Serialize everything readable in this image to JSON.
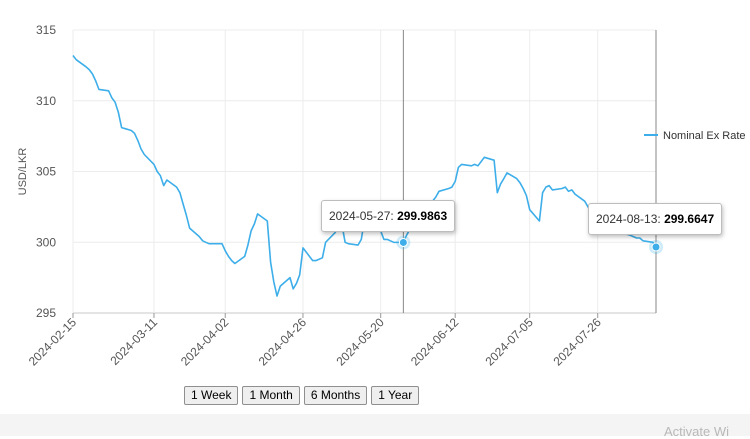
{
  "chart_data": {
    "type": "line",
    "title": "",
    "xlabel": "",
    "ylabel": "USD/LKR",
    "ylim": [
      295,
      315
    ],
    "y_ticks": [
      295,
      300,
      305,
      310,
      315
    ],
    "x_tick_labels": [
      "2024-02-15",
      "2024-03-11",
      "2024-04-02",
      "2024-04-26",
      "2024-05-20",
      "2024-06-12",
      "2024-07-05",
      "2024-07-26"
    ],
    "grid": true,
    "legend_position": "right",
    "series": [
      {
        "name": "Nominal Ex Rate",
        "color": "#3daee9",
        "points": [
          [
            "2024-02-15",
            313.2
          ],
          [
            "2024-02-16",
            312.9
          ],
          [
            "2024-02-19",
            312.4
          ],
          [
            "2024-02-20",
            312.2
          ],
          [
            "2024-02-21",
            311.9
          ],
          [
            "2024-02-22",
            311.4
          ],
          [
            "2024-02-23",
            310.8
          ],
          [
            "2024-02-26",
            310.7
          ],
          [
            "2024-02-27",
            310.2
          ],
          [
            "2024-02-28",
            309.9
          ],
          [
            "2024-02-29",
            309.2
          ],
          [
            "2024-03-01",
            308.1
          ],
          [
            "2024-03-04",
            307.9
          ],
          [
            "2024-03-05",
            307.7
          ],
          [
            "2024-03-06",
            307.2
          ],
          [
            "2024-03-07",
            306.6
          ],
          [
            "2024-03-08",
            306.2
          ],
          [
            "2024-03-11",
            305.5
          ],
          [
            "2024-03-12",
            305.0
          ],
          [
            "2024-03-13",
            304.7
          ],
          [
            "2024-03-14",
            304.0
          ],
          [
            "2024-03-15",
            304.4
          ],
          [
            "2024-03-18",
            303.9
          ],
          [
            "2024-03-19",
            303.5
          ],
          [
            "2024-03-20",
            302.7
          ],
          [
            "2024-03-21",
            301.9
          ],
          [
            "2024-03-22",
            301.0
          ],
          [
            "2024-03-25",
            300.4
          ],
          [
            "2024-03-26",
            300.1
          ],
          [
            "2024-03-27",
            300.0
          ],
          [
            "2024-03-28",
            299.9
          ],
          [
            "2024-04-01",
            299.9
          ],
          [
            "2024-04-02",
            299.4
          ],
          [
            "2024-04-03",
            299.0
          ],
          [
            "2024-04-04",
            298.7
          ],
          [
            "2024-04-05",
            298.5
          ],
          [
            "2024-04-08",
            299.0
          ],
          [
            "2024-04-09",
            299.8
          ],
          [
            "2024-04-10",
            300.8
          ],
          [
            "2024-04-11",
            301.3
          ],
          [
            "2024-04-12",
            302.0
          ],
          [
            "2024-04-15",
            301.5
          ],
          [
            "2024-04-16",
            298.6
          ],
          [
            "2024-04-17",
            297.2
          ],
          [
            "2024-04-18",
            296.2
          ],
          [
            "2024-04-19",
            296.9
          ],
          [
            "2024-04-22",
            297.5
          ],
          [
            "2024-04-23",
            296.7
          ],
          [
            "2024-04-24",
            297.1
          ],
          [
            "2024-04-25",
            297.7
          ],
          [
            "2024-04-26",
            299.6
          ],
          [
            "2024-04-29",
            298.7
          ],
          [
            "2024-04-30",
            298.7
          ],
          [
            "2024-05-02",
            298.9
          ],
          [
            "2024-05-03",
            300.0
          ],
          [
            "2024-05-06",
            300.7
          ],
          [
            "2024-05-07",
            301.5
          ],
          [
            "2024-05-08",
            301.3
          ],
          [
            "2024-05-09",
            300.0
          ],
          [
            "2024-05-10",
            299.9
          ],
          [
            "2024-05-13",
            299.8
          ],
          [
            "2024-05-14",
            300.2
          ],
          [
            "2024-05-15",
            301.6
          ],
          [
            "2024-05-16",
            301.5
          ],
          [
            "2024-05-17",
            301.0
          ],
          [
            "2024-05-20",
            300.8
          ],
          [
            "2024-05-21",
            300.2
          ],
          [
            "2024-05-22",
            300.2
          ],
          [
            "2024-05-23",
            300.1
          ],
          [
            "2024-05-24",
            300.0
          ],
          [
            "2024-05-27",
            299.9863
          ],
          [
            "2024-05-28",
            300.5
          ],
          [
            "2024-05-29",
            300.9
          ],
          [
            "2024-05-30",
            301.2
          ],
          [
            "2024-05-31",
            301.6
          ],
          [
            "2024-06-03",
            302.0
          ],
          [
            "2024-06-04",
            302.4
          ],
          [
            "2024-06-05",
            302.9
          ],
          [
            "2024-06-06",
            303.2
          ],
          [
            "2024-06-07",
            303.6
          ],
          [
            "2024-06-10",
            303.8
          ],
          [
            "2024-06-11",
            303.9
          ],
          [
            "2024-06-12",
            304.3
          ],
          [
            "2024-06-13",
            305.3
          ],
          [
            "2024-06-14",
            305.5
          ],
          [
            "2024-06-17",
            305.4
          ],
          [
            "2024-06-18",
            305.5
          ],
          [
            "2024-06-19",
            305.4
          ],
          [
            "2024-06-20",
            305.7
          ],
          [
            "2024-06-21",
            306.0
          ],
          [
            "2024-06-24",
            305.8
          ],
          [
            "2024-06-25",
            303.5
          ],
          [
            "2024-06-26",
            304.1
          ],
          [
            "2024-06-27",
            304.5
          ],
          [
            "2024-06-28",
            304.9
          ],
          [
            "2024-07-01",
            304.5
          ],
          [
            "2024-07-02",
            304.2
          ],
          [
            "2024-07-03",
            303.8
          ],
          [
            "2024-07-04",
            303.3
          ],
          [
            "2024-07-05",
            302.3
          ],
          [
            "2024-07-08",
            301.5
          ],
          [
            "2024-07-09",
            303.5
          ],
          [
            "2024-07-10",
            303.9
          ],
          [
            "2024-07-11",
            304.0
          ],
          [
            "2024-07-12",
            303.7
          ],
          [
            "2024-07-15",
            303.8
          ],
          [
            "2024-07-16",
            303.9
          ],
          [
            "2024-07-17",
            303.6
          ],
          [
            "2024-07-18",
            303.7
          ],
          [
            "2024-07-19",
            303.4
          ],
          [
            "2024-07-22",
            302.9
          ],
          [
            "2024-07-23",
            302.5
          ],
          [
            "2024-07-24",
            302.1
          ],
          [
            "2024-07-25",
            301.8
          ],
          [
            "2024-07-26",
            301.5
          ],
          [
            "2024-07-29",
            301.3
          ],
          [
            "2024-07-30",
            301.1
          ],
          [
            "2024-07-31",
            301.2
          ],
          [
            "2024-08-01",
            300.9
          ],
          [
            "2024-08-02",
            300.7
          ],
          [
            "2024-08-05",
            300.5
          ],
          [
            "2024-08-06",
            300.4
          ],
          [
            "2024-08-07",
            300.3
          ],
          [
            "2024-08-08",
            300.3
          ],
          [
            "2024-08-09",
            300.1
          ],
          [
            "2024-08-12",
            300.0
          ],
          [
            "2024-08-13",
            299.6647
          ]
        ]
      }
    ],
    "highlighted_points": [
      {
        "date": "2024-05-27",
        "value_label": "299.9863",
        "value": 299.9863
      },
      {
        "date": "2024-08-13",
        "value_label": "299.6647",
        "value": 299.6647
      }
    ]
  },
  "range_buttons": [
    "1 Week",
    "1 Month",
    "6 Months",
    "1 Year"
  ],
  "watermark": "Activate Wi",
  "menu_icon": "kebab-menu-icon"
}
